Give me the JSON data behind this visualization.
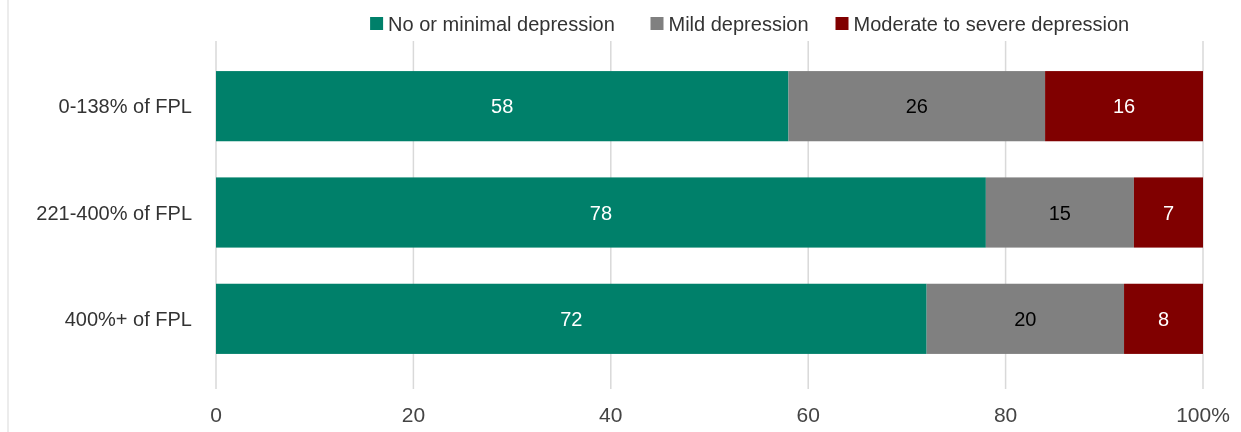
{
  "chart_data": {
    "type": "bar",
    "orientation": "horizontal",
    "stacked": true,
    "categories": [
      "0-138% of FPL",
      "221-400% of FPL",
      "400%+ of FPL"
    ],
    "series": [
      {
        "name": "No or minimal depression",
        "color": "#00806a",
        "values": [
          58,
          78,
          72
        ]
      },
      {
        "name": "Mild depression",
        "color": "#808080",
        "values": [
          26,
          15,
          20
        ]
      },
      {
        "name": "Moderate to severe depression",
        "color": "#800000",
        "values": [
          16,
          7,
          8
        ]
      }
    ],
    "xlim": [
      0,
      100
    ],
    "xticks": [
      0,
      20,
      40,
      60,
      80,
      {
        "value": 100,
        "label": "100%"
      }
    ],
    "grid": "x",
    "legend": "top",
    "data_labels": true
  }
}
